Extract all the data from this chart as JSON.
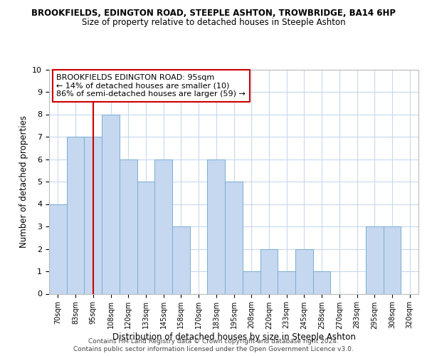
{
  "title": "BROOKFIELDS, EDINGTON ROAD, STEEPLE ASHTON, TROWBRIDGE, BA14 6HP",
  "subtitle": "Size of property relative to detached houses in Steeple Ashton",
  "xlabel": "Distribution of detached houses by size in Steeple Ashton",
  "ylabel": "Number of detached properties",
  "categories": [
    "70sqm",
    "83sqm",
    "95sqm",
    "108sqm",
    "120sqm",
    "133sqm",
    "145sqm",
    "158sqm",
    "170sqm",
    "183sqm",
    "195sqm",
    "208sqm",
    "220sqm",
    "233sqm",
    "245sqm",
    "258sqm",
    "270sqm",
    "283sqm",
    "295sqm",
    "308sqm",
    "320sqm"
  ],
  "values": [
    4,
    7,
    7,
    8,
    6,
    5,
    6,
    3,
    0,
    6,
    5,
    1,
    2,
    1,
    2,
    1,
    0,
    0,
    3,
    3,
    0
  ],
  "bar_color": "#c5d8f0",
  "bar_edge_color": "#7aadd4",
  "highlight_index": 2,
  "highlight_line_color": "#cc0000",
  "ylim": [
    0,
    10
  ],
  "yticks": [
    0,
    1,
    2,
    3,
    4,
    5,
    6,
    7,
    8,
    9,
    10
  ],
  "annotation_title": "BROOKFIELDS EDINGTON ROAD: 95sqm",
  "annotation_line1": "← 14% of detached houses are smaller (10)",
  "annotation_line2": "86% of semi-detached houses are larger (59) →",
  "annotation_box_color": "#ffffff",
  "annotation_box_edge_color": "#cc0000",
  "footnote1": "Contains HM Land Registry data © Crown copyright and database right 2024.",
  "footnote2": "Contains public sector information licensed under the Open Government Licence v3.0.",
  "background_color": "#ffffff",
  "grid_color": "#c8d8ed"
}
